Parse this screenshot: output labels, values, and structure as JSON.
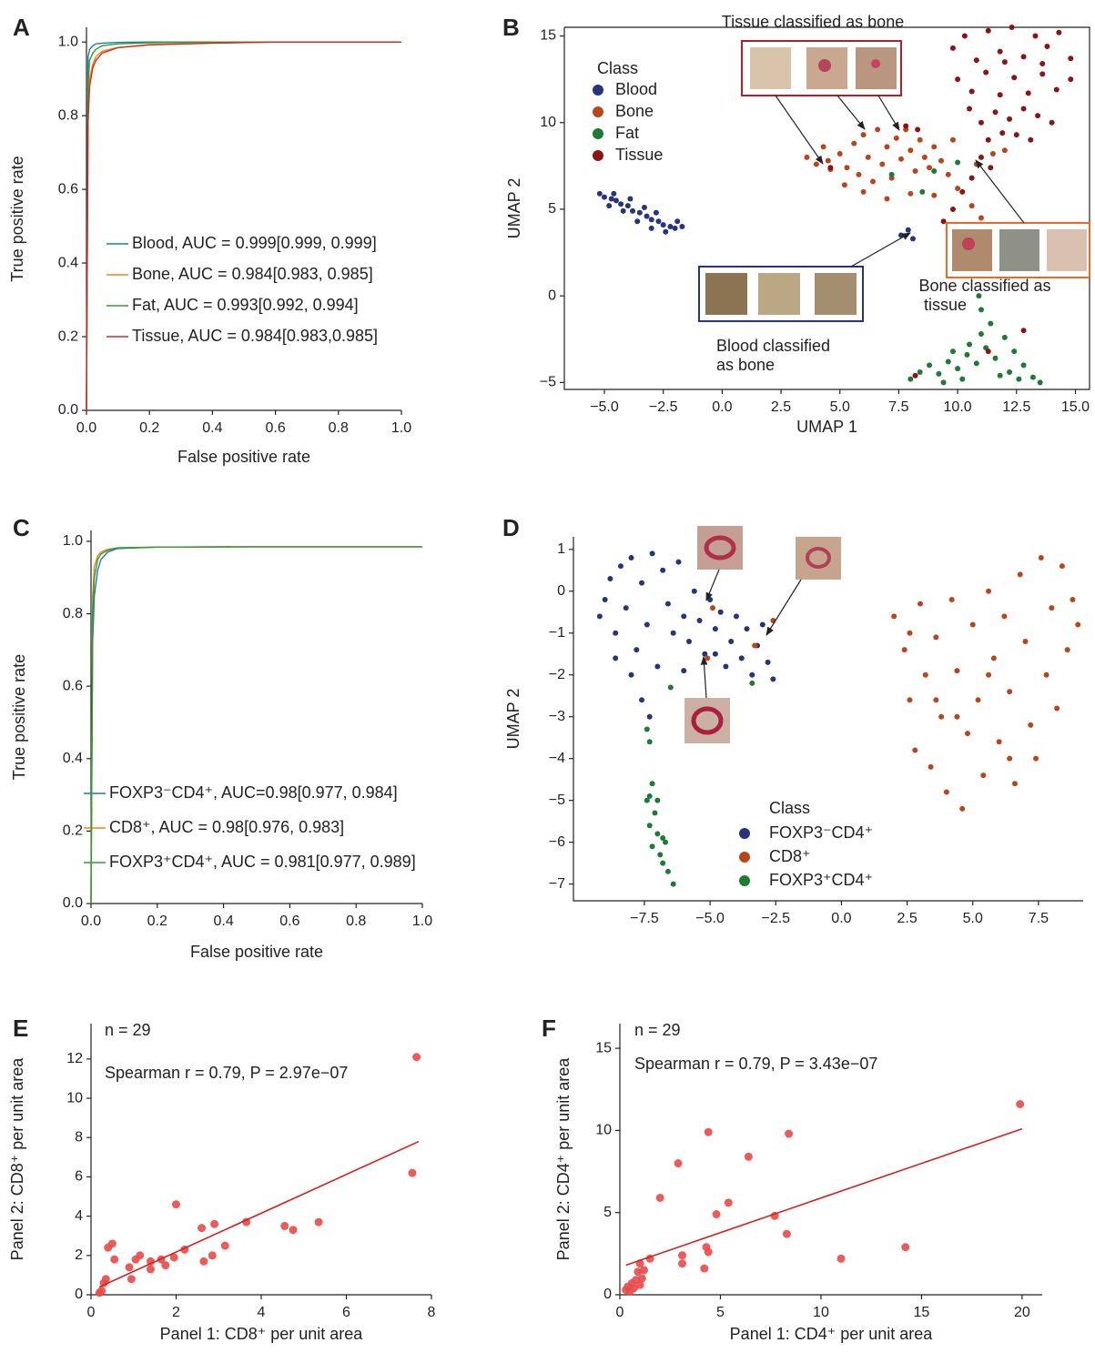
{
  "chart_data": [
    {
      "label": "A",
      "type": "line",
      "xlabel": "False positive rate",
      "ylabel": "True positive rate",
      "xlim": [
        0,
        1
      ],
      "ylim": [
        0,
        1.04
      ],
      "xticks": [
        {
          "value": 0,
          "label": "0.0"
        },
        0.2,
        0.4,
        0.6,
        0.8,
        {
          "value": 1,
          "label": "1.0"
        }
      ],
      "yticks": [
        {
          "value": 0,
          "label": "0.0"
        },
        0.2,
        0.4,
        0.6,
        0.8,
        {
          "value": 1,
          "label": "1.0"
        }
      ],
      "x": [
        0,
        0.005,
        0.01,
        0.02,
        0.03,
        0.05,
        0.1,
        0.2,
        0.4,
        0.6,
        1.0
      ],
      "series": [
        {
          "name": "Blood, AUC = 0.999[0.999, 0.999]",
          "color": "#1f77b4",
          "values": [
            0,
            0.96,
            0.98,
            0.99,
            0.995,
            0.997,
            0.999,
            1,
            1,
            1,
            1
          ]
        },
        {
          "name": "Bone, AUC = 0.984[0.983, 0.985]",
          "color": "#ff7f0e",
          "values": [
            0,
            0.8,
            0.9,
            0.94,
            0.96,
            0.975,
            0.985,
            0.992,
            0.997,
            1,
            1
          ]
        },
        {
          "name": "Fat, AUC = 0.993[0.992, 0.994]",
          "color": "#2ca02c",
          "values": [
            0,
            0.88,
            0.95,
            0.97,
            0.98,
            0.99,
            0.995,
            0.998,
            1,
            1,
            1
          ]
        },
        {
          "name": "Tissue, AUC = 0.984[0.983,0.985]",
          "color": "#d62728",
          "values": [
            0,
            0.78,
            0.88,
            0.93,
            0.95,
            0.97,
            0.985,
            0.993,
            0.997,
            1,
            1
          ]
        }
      ]
    },
    {
      "label": "B",
      "type": "scatter",
      "xlabel": "UMAP 1",
      "ylabel": "UMAP 2",
      "legend_title": "Class",
      "frame": true,
      "xlim": [
        -6.7,
        15.6
      ],
      "ylim": [
        -5.4,
        15.5
      ],
      "xticks": [
        {
          "value": -5,
          "label": "−5.0"
        },
        {
          "value": -2.5,
          "label": "−2.5"
        },
        {
          "value": 0,
          "label": "0.0"
        },
        2.5,
        {
          "value": 5,
          "label": "5.0"
        },
        7.5,
        {
          "value": 10,
          "label": "10.0"
        },
        12.5,
        {
          "value": 15,
          "label": "15.0"
        }
      ],
      "yticks": [
        {
          "value": -5,
          "label": "−5"
        },
        0,
        5,
        10,
        15
      ],
      "annotations": [
        "Tissue classified as bone",
        "Bone classified as",
        "tissue",
        "Blood classified",
        "as bone"
      ],
      "series": [
        {
          "name": "Blood",
          "color": "#27347a",
          "x": [
            -5.2,
            -5.0,
            -4.7,
            -4.5,
            -4.3,
            -4.0,
            -3.8,
            -3.5,
            -3.2,
            -3.0,
            -2.7,
            -2.5,
            -2.2,
            -2.0,
            -1.7,
            -4.8,
            -4.2,
            -3.6,
            -3.0,
            -2.4,
            -4.6,
            -3.9,
            -3.3,
            -2.8,
            -1.9,
            7.6,
            7.9,
            8.1
          ],
          "values": [
            5.9,
            5.7,
            5.6,
            5.5,
            5.3,
            5.2,
            4.9,
            4.8,
            4.6,
            4.4,
            4.3,
            4.1,
            4.0,
            3.9,
            4.0,
            5.2,
            4.9,
            4.3,
            3.9,
            3.7,
            5.9,
            5.6,
            5.1,
            4.8,
            4.3,
            3.5,
            3.8,
            3.3
          ]
        },
        {
          "name": "Bone",
          "color": "#b8461c",
          "x": [
            4.5,
            5.0,
            5.3,
            5.6,
            5.8,
            6.0,
            6.2,
            6.4,
            6.6,
            6.8,
            7.0,
            7.2,
            7.4,
            7.6,
            7.8,
            8.0,
            8.2,
            8.4,
            8.6,
            8.8,
            9.0,
            9.3,
            9.6,
            5.2,
            6.0,
            7.0,
            8.0,
            9.0,
            10.0,
            10.6,
            11.0,
            10.8,
            11.5,
            12.0,
            4.0,
            4.6,
            9.8,
            3.6,
            4.3
          ],
          "values": [
            7.8,
            8.2,
            7.4,
            8.8,
            7.0,
            9.3,
            8.0,
            6.6,
            9.6,
            7.6,
            8.6,
            6.8,
            9.1,
            7.9,
            9.6,
            8.4,
            7.2,
            9.0,
            8.0,
            7.4,
            8.6,
            7.8,
            7.0,
            6.4,
            6.0,
            5.6,
            5.9,
            5.8,
            6.2,
            5.2,
            4.5,
            7.6,
            8.2,
            8.4,
            7.6,
            7.3,
            9.0,
            8.0,
            8.6
          ]
        },
        {
          "name": "Fat",
          "color": "#1e7a35",
          "x": [
            8.0,
            8.4,
            8.8,
            9.2,
            9.6,
            10.0,
            10.4,
            10.8,
            11.2,
            11.6,
            12.0,
            12.4,
            12.8,
            13.2,
            13.5,
            11.0,
            11.4,
            11.0,
            10.9,
            12.2,
            10.2,
            9.4,
            11.8,
            12.6,
            7.2,
            9.0,
            10.0,
            8.5,
            10.5,
            9.8
          ],
          "values": [
            -4.8,
            -4.4,
            -4.0,
            -4.5,
            -3.8,
            -4.2,
            -3.4,
            -3.9,
            -3.0,
            -3.6,
            -2.4,
            -3.2,
            -4.0,
            -4.7,
            -5.0,
            -2.2,
            -1.6,
            -0.8,
            0.0,
            -4.4,
            -4.8,
            -5.0,
            -4.6,
            -4.8,
            7.0,
            7.2,
            7.7,
            6.0,
            -2.8,
            -3.2
          ]
        },
        {
          "name": "Tissue",
          "color": "#8b1515",
          "x": [
            9.8,
            10.3,
            10.8,
            11.3,
            11.8,
            12.3,
            12.8,
            13.3,
            13.8,
            14.3,
            14.8,
            10.0,
            10.6,
            11.2,
            11.8,
            12.4,
            13.0,
            13.6,
            14.2,
            14.8,
            10.5,
            11.0,
            11.6,
            12.2,
            12.8,
            13.4,
            14.0,
            11.3,
            11.9,
            12.5,
            13.1,
            11.0,
            11.4,
            10.6,
            10.2,
            9.8,
            9.4,
            4.6,
            7.8,
            8.3,
            13.6,
            12.0,
            8.2,
            11.3,
            12.8
          ],
          "values": [
            14.3,
            15.0,
            13.6,
            15.3,
            14.1,
            15.5,
            13.8,
            15.0,
            14.4,
            15.2,
            13.7,
            12.5,
            11.8,
            12.9,
            11.6,
            12.6,
            11.7,
            12.8,
            11.9,
            12.5,
            10.8,
            10.0,
            10.6,
            10.2,
            10.8,
            10.4,
            10.0,
            9.0,
            9.4,
            9.3,
            9.0,
            8.0,
            7.4,
            6.8,
            6.0,
            5.0,
            4.3,
            7.4,
            9.8,
            9.6,
            13.4,
            13.5,
            -4.6,
            -3.2,
            -2.0
          ]
        }
      ]
    },
    {
      "label": "C",
      "type": "line",
      "xlabel": "False positive rate",
      "ylabel": "True positive rate",
      "xlim": [
        0,
        1
      ],
      "ylim": [
        0,
        1.03
      ],
      "xticks": [
        {
          "value": 0,
          "label": "0.0"
        },
        0.2,
        0.4,
        0.6,
        0.8,
        {
          "value": 1,
          "label": "1.0"
        }
      ],
      "yticks": [
        {
          "value": 0,
          "label": "0.0"
        },
        0.2,
        0.4,
        0.6,
        0.8,
        {
          "value": 1,
          "label": "1.0"
        }
      ],
      "x": [
        0,
        0.005,
        0.01,
        0.02,
        0.03,
        0.05,
        0.08,
        0.2,
        0.5,
        1.0
      ],
      "series": [
        {
          "name": "FOXP3⁻CD4⁺, AUC=0.98[0.977, 0.984]",
          "color": "#1f77b4",
          "values": [
            0,
            0.72,
            0.85,
            0.92,
            0.95,
            0.97,
            0.98,
            0.984,
            0.985,
            0.985
          ]
        },
        {
          "name": "CD8⁺, AUC = 0.98[0.976, 0.983]",
          "color": "#ff7f0e",
          "values": [
            0,
            0.85,
            0.93,
            0.96,
            0.97,
            0.978,
            0.982,
            0.984,
            0.985,
            0.985
          ]
        },
        {
          "name": "FOXP3⁺CD4⁺, AUC = 0.981[0.977, 0.989]",
          "color": "#2ca02c",
          "values": [
            0,
            0.8,
            0.9,
            0.95,
            0.965,
            0.975,
            0.982,
            0.984,
            0.985,
            0.985
          ]
        }
      ]
    },
    {
      "label": "D",
      "type": "scatter",
      "ylabel": "UMAP 2",
      "legend_title": "Class",
      "xlim": [
        -10.2,
        9.2
      ],
      "ylim": [
        -7.4,
        1.3
      ],
      "xticks": [
        {
          "value": -7.5,
          "label": "−7.5"
        },
        {
          "value": -5,
          "label": "−5.0"
        },
        {
          "value": -2.5,
          "label": "−2.5"
        },
        {
          "value": 0,
          "label": "0.0"
        },
        2.5,
        {
          "value": 5,
          "label": "5.0"
        },
        7.5
      ],
      "yticks": [
        1,
        0,
        {
          "value": -1,
          "label": "−1"
        },
        {
          "value": -2,
          "label": "−2"
        },
        {
          "value": -3,
          "label": "−3"
        },
        {
          "value": -4,
          "label": "−4"
        },
        {
          "value": -5,
          "label": "−5"
        },
        {
          "value": -6,
          "label": "−6"
        },
        {
          "value": -7,
          "label": "−7"
        }
      ],
      "series": [
        {
          "name": "FOXP3⁻CD4⁺",
          "color": "#27347a",
          "x": [
            -9.2,
            -9.0,
            -8.8,
            -8.6,
            -8.4,
            -8.2,
            -8.0,
            -7.8,
            -7.6,
            -7.4,
            -7.2,
            -7.0,
            -6.8,
            -6.6,
            -6.4,
            -6.2,
            -6.0,
            -5.8,
            -5.6,
            -5.4,
            -5.2,
            -5.0,
            -4.8,
            -4.6,
            -4.4,
            -4.2,
            -4.0,
            -3.8,
            -3.6,
            -3.4,
            -3.2,
            -3.0,
            -2.8,
            -2.6,
            -8.0,
            -7.6,
            -7.3,
            -8.6,
            -6.0,
            -4.8
          ],
          "values": [
            -0.6,
            -0.2,
            0.3,
            -1.0,
            0.6,
            -0.4,
            0.8,
            -1.4,
            0.2,
            -0.8,
            0.9,
            -1.8,
            0.5,
            -0.3,
            -1.0,
            0.7,
            -0.6,
            -1.2,
            0.0,
            -0.7,
            -1.5,
            -0.2,
            -0.9,
            -0.5,
            -1.8,
            -1.2,
            -0.6,
            -1.6,
            -0.9,
            -2.0,
            -1.3,
            -0.8,
            -1.7,
            -2.1,
            -2.0,
            -2.6,
            -3.0,
            -1.6,
            -1.9,
            -1.5
          ]
        },
        {
          "name": "CD8⁺",
          "color": "#b8461c",
          "x": [
            2.0,
            2.4,
            2.6,
            2.8,
            3.0,
            3.2,
            3.4,
            3.6,
            3.8,
            4.0,
            4.2,
            4.4,
            4.6,
            4.8,
            5.0,
            5.2,
            5.4,
            5.6,
            5.8,
            6.0,
            6.2,
            6.4,
            6.6,
            6.8,
            7.0,
            7.2,
            7.4,
            7.6,
            7.8,
            8.0,
            8.2,
            8.4,
            8.6,
            8.8,
            9.0,
            4.4,
            5.6,
            6.4,
            3.6,
            2.6,
            -4.9,
            -2.6,
            -5.1,
            -3.3
          ],
          "values": [
            -0.6,
            -1.4,
            -2.6,
            -3.8,
            -0.3,
            -2.0,
            -4.2,
            -1.1,
            -3.0,
            -4.8,
            -0.2,
            -1.9,
            -5.2,
            -3.4,
            -0.8,
            -2.6,
            -4.4,
            0.0,
            -1.6,
            -3.6,
            -0.6,
            -2.4,
            -4.6,
            0.4,
            -1.2,
            -3.2,
            -4.0,
            0.8,
            -2.0,
            -0.4,
            -2.8,
            0.6,
            -1.4,
            -0.2,
            -0.8,
            -3.0,
            -2.0,
            -4.0,
            -2.6,
            -1.0,
            -0.4,
            -0.7,
            -1.6,
            -1.3
          ]
        },
        {
          "name": "FOXP3⁺CD4⁺",
          "color": "#1e7a35",
          "x": [
            -7.4,
            -7.3,
            -7.2,
            -7.4,
            -7.1,
            -7.3,
            -7.0,
            -7.2,
            -6.9,
            -6.8,
            -6.6,
            -6.4,
            -7.0,
            -6.8,
            -6.5,
            -3.4,
            -7.3,
            -6.7
          ],
          "values": [
            -3.3,
            -3.6,
            -4.6,
            -5.0,
            -5.3,
            -5.6,
            -5.8,
            -6.1,
            -6.3,
            -6.5,
            -6.7,
            -7.0,
            -5.0,
            -5.9,
            -2.3,
            -2.2,
            -4.9,
            -6.0
          ]
        }
      ]
    },
    {
      "label": "E",
      "type": "scatter",
      "xlabel": "Panel 1: CD8⁺ per unit area",
      "ylabel": "Panel 2: CD8⁺ per unit area",
      "annotations": [
        "n = 29",
        "Spearman r = 0.79, P = 2.97e−07"
      ],
      "xlim": [
        0,
        8
      ],
      "ylim": [
        0,
        13.8
      ],
      "xticks": [
        0,
        2,
        4,
        6,
        8
      ],
      "yticks": [
        0,
        2,
        4,
        6,
        8,
        10,
        12
      ],
      "series": [
        {
          "color": "#e84a4a",
          "x": [
            0.2,
            0.25,
            0.3,
            0.35,
            0.4,
            0.5,
            0.55,
            0.9,
            0.95,
            1.05,
            1.15,
            1.4,
            1.4,
            1.65,
            1.75,
            1.95,
            2.0,
            2.2,
            2.6,
            2.65,
            2.85,
            2.9,
            3.15,
            3.65,
            4.55,
            4.75,
            5.35,
            7.55,
            7.65
          ],
          "values": [
            0.1,
            0.2,
            0.6,
            0.8,
            2.4,
            2.6,
            1.8,
            1.4,
            0.8,
            1.8,
            2.0,
            1.7,
            1.3,
            1.8,
            1.5,
            1.9,
            4.6,
            2.3,
            3.4,
            1.7,
            2.0,
            3.6,
            2.5,
            3.7,
            3.5,
            3.3,
            3.7,
            6.2,
            12.1
          ]
        }
      ],
      "fit": {
        "color": "#d42020",
        "x": [
          0.2,
          7.7
        ],
        "values": [
          0.4,
          7.8
        ]
      }
    },
    {
      "label": "F",
      "type": "scatter",
      "xlabel": "Panel 1: CD4⁺ per unit area",
      "ylabel": "Panel 2: CD4⁺ per unit area",
      "annotations": [
        "n = 29",
        "Spearman r = 0.79, P = 3.43e−07"
      ],
      "xlim": [
        0,
        21
      ],
      "ylim": [
        0,
        16.5
      ],
      "xticks": [
        0,
        5,
        10,
        15,
        20
      ],
      "yticks": [
        0,
        5,
        10,
        15
      ],
      "series": [
        {
          "color": "#e84a4a",
          "x": [
            0.3,
            0.4,
            0.5,
            0.6,
            0.7,
            0.8,
            0.9,
            1.0,
            1.0,
            1.2,
            1.5,
            2.0,
            2.9,
            3.1,
            3.1,
            4.2,
            4.3,
            4.4,
            4.4,
            4.8,
            5.4,
            6.4,
            7.7,
            8.3,
            8.4,
            11.0,
            14.2,
            19.9,
            1.1
          ],
          "values": [
            0.3,
            0.5,
            0.2,
            0.7,
            0.4,
            0.9,
            1.4,
            1.9,
            0.6,
            1.5,
            2.2,
            5.9,
            8.0,
            2.4,
            1.9,
            1.6,
            2.9,
            2.6,
            9.9,
            4.9,
            5.6,
            8.4,
            4.8,
            3.7,
            9.8,
            2.2,
            2.9,
            11.6,
            1.0
          ]
        }
      ],
      "fit": {
        "color": "#d42020",
        "x": [
          0.3,
          20
        ],
        "values": [
          1.8,
          10.1
        ]
      }
    }
  ]
}
